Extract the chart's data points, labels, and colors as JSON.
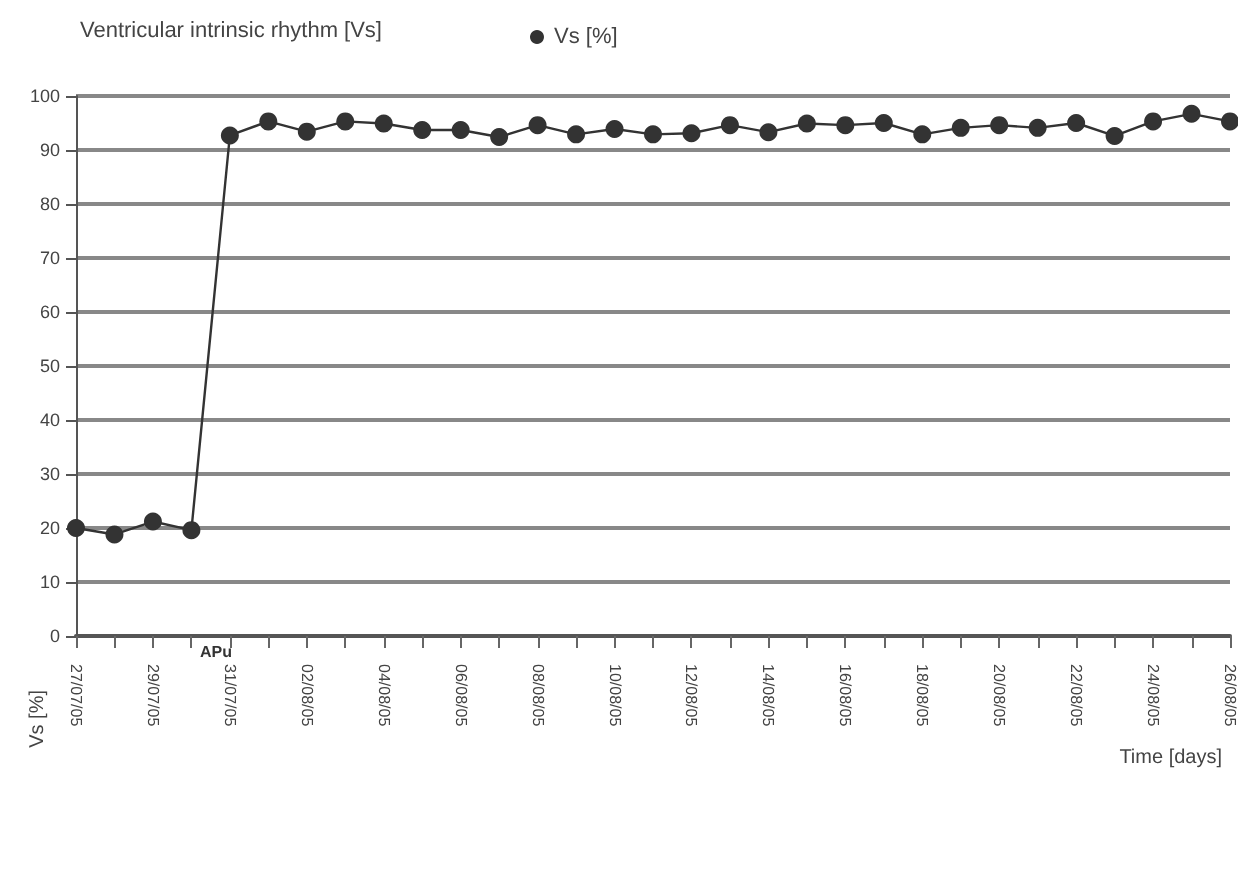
{
  "chart_data": {
    "type": "line",
    "title": "Ventricular intrinsic rhythm [Vs]",
    "xlabel": "Time [days]",
    "ylabel": "Vs [%]",
    "categories": [
      "27/07/05",
      null,
      "29/07/05",
      null,
      "31/07/05",
      null,
      "02/08/05",
      null,
      "04/08/05",
      null,
      "06/08/05",
      null,
      "08/08/05",
      null,
      "10/08/05",
      null,
      "12/08/05",
      null,
      "14/08/05",
      null,
      "16/08/05",
      null,
      "18/08/05",
      null,
      "20/08/05",
      null,
      "22/08/05",
      null,
      "24/08/05",
      null,
      "26/08/05"
    ],
    "series": [
      {
        "name": "Vs [%]",
        "color": "#333333",
        "values": [
          20,
          18.8,
          21.2,
          19.6,
          92.7,
          95.3,
          93.4,
          95.3,
          94.9,
          93.7,
          93.7,
          92.4,
          94.6,
          92.9,
          93.9,
          92.9,
          93.1,
          94.6,
          93.3,
          94.9,
          94.6,
          95,
          92.9,
          94.1,
          94.6,
          94.1,
          95,
          92.6,
          95.3,
          96.7,
          95.3
        ]
      }
    ],
    "annotations": [
      "APu"
    ],
    "ylim": [
      0,
      100
    ],
    "yticks": [
      0,
      10,
      20,
      30,
      40,
      50,
      60,
      70,
      80,
      90,
      100
    ],
    "grid": "y",
    "legend": "top left",
    "marker": "circle",
    "line_style": "solid"
  }
}
